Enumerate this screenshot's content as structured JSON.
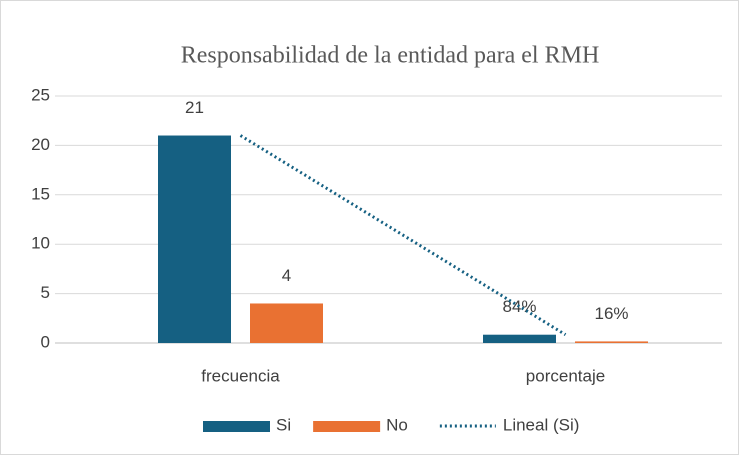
{
  "chart_data": {
    "type": "bar",
    "title": "Responsabilidad de la entidad para el RMH",
    "categories": [
      "frecuencia",
      "porcentaje"
    ],
    "series": [
      {
        "name": "Si",
        "color": "#156082",
        "values": [
          21,
          0.84
        ],
        "value_labels": [
          "21",
          "84%"
        ]
      },
      {
        "name": "No",
        "color": "#e97132",
        "values": [
          4,
          0.16
        ],
        "value_labels": [
          "4",
          "16%"
        ]
      }
    ],
    "trendline": {
      "name": "Lineal (Si)",
      "series": 0,
      "color": "#156082"
    },
    "ylim": [
      0,
      25
    ],
    "yticks": [
      0,
      5,
      10,
      15,
      20,
      25
    ],
    "grid": true,
    "legend": "bottom"
  }
}
